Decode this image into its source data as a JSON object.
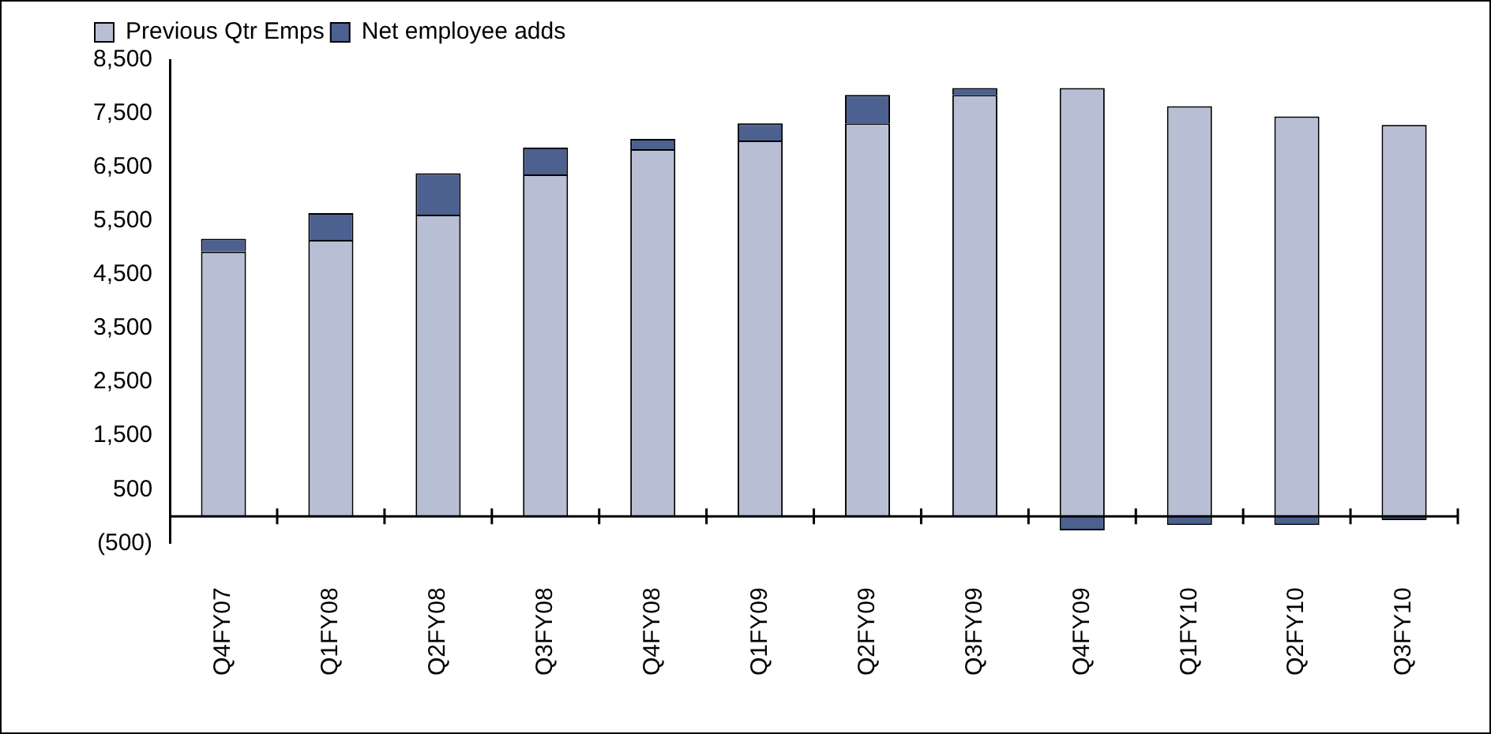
{
  "chart_data": {
    "type": "bar",
    "stacked": true,
    "categories": [
      "Q4FY07",
      "Q1FY08",
      "Q2FY08",
      "Q3FY08",
      "Q4FY08",
      "Q1FY09",
      "Q2FY09",
      "Q3FY09",
      "Q4FY09",
      "Q1FY10",
      "Q2FY10",
      "Q3FY10"
    ],
    "series": [
      {
        "name": "Previous Qtr Emps",
        "color": "#b8bed3",
        "values": [
          4930,
          5150,
          5620,
          6370,
          6840,
          7000,
          7320,
          7850,
          7980,
          7640,
          7450,
          7290
        ]
      },
      {
        "name": "Net employee adds",
        "color": "#4c6190",
        "values": [
          240,
          500,
          770,
          500,
          190,
          320,
          530,
          130,
          -260,
          -160,
          -160,
          -70
        ]
      }
    ],
    "ylim": [
      -500,
      8500
    ],
    "yticks": [
      {
        "value": -500,
        "label": "(500)"
      },
      {
        "value": 500,
        "label": "500"
      },
      {
        "value": 1500,
        "label": "1,500"
      },
      {
        "value": 2500,
        "label": "2,500"
      },
      {
        "value": 3500,
        "label": "3,500"
      },
      {
        "value": 4500,
        "label": "4,500"
      },
      {
        "value": 5500,
        "label": "5,500"
      },
      {
        "value": 6500,
        "label": "6,500"
      },
      {
        "value": 7500,
        "label": "7,500"
      },
      {
        "value": 8500,
        "label": "8,500"
      }
    ],
    "grid": false,
    "legend": "top left"
  }
}
